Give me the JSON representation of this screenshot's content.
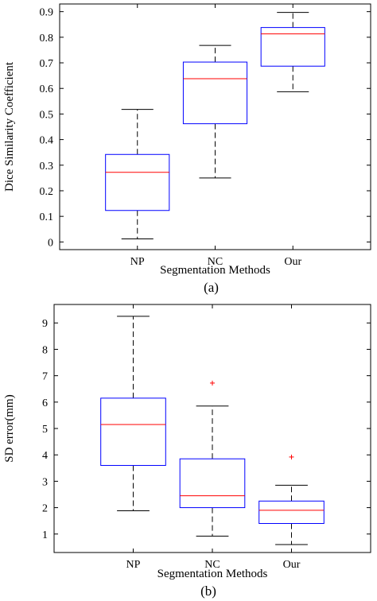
{
  "colors": {
    "box": "#0000ff",
    "median": "#ff0000",
    "whisker": "#000000",
    "outlier": "#ff0000",
    "axes": "#000000",
    "background": "#ffffff"
  },
  "chart_data": [
    {
      "type": "box",
      "panel": "(a)",
      "xlabel": "Segmentation Methods",
      "ylabel": "Dice Similarity Coefficient",
      "categories": [
        "NP",
        "NC",
        "Our"
      ],
      "ylim": [
        -0.03,
        0.93
      ],
      "yticks": [
        0,
        0.1,
        0.2,
        0.3,
        0.4,
        0.5,
        0.6,
        0.7,
        0.8,
        0.9
      ],
      "ytick_labels": [
        "0",
        "0.1",
        "0.2",
        "0.3",
        "0.4",
        "0.5",
        "0.6",
        "0.7",
        "0.8",
        "0.9"
      ],
      "grid": false,
      "boxes": [
        {
          "category": "NP",
          "min": 0.012,
          "q1": 0.123,
          "median": 0.272,
          "q3": 0.342,
          "max": 0.518,
          "outliers": []
        },
        {
          "category": "NC",
          "min": 0.25,
          "q1": 0.462,
          "median": 0.638,
          "q3": 0.703,
          "max": 0.768,
          "outliers": []
        },
        {
          "category": "Our",
          "min": 0.587,
          "q1": 0.687,
          "median": 0.813,
          "q3": 0.838,
          "max": 0.897,
          "outliers": []
        }
      ]
    },
    {
      "type": "box",
      "panel": "(b)",
      "xlabel": "Segmentation Methods",
      "ylabel": "SD error(mm)",
      "categories": [
        "NP",
        "NC",
        "Our"
      ],
      "ylim": [
        0.3,
        9.7
      ],
      "yticks": [
        1,
        2,
        3,
        4,
        5,
        6,
        7,
        8,
        9
      ],
      "ytick_labels": [
        "1",
        "2",
        "3",
        "4",
        "5",
        "6",
        "7",
        "8",
        "9"
      ],
      "grid": false,
      "boxes": [
        {
          "category": "NP",
          "min": 1.88,
          "q1": 3.6,
          "median": 5.15,
          "q3": 6.15,
          "max": 9.25,
          "outliers": []
        },
        {
          "category": "NC",
          "min": 0.92,
          "q1": 2.0,
          "median": 2.45,
          "q3": 3.85,
          "max": 5.85,
          "outliers": [
            6.72
          ]
        },
        {
          "category": "Our",
          "min": 0.6,
          "q1": 1.4,
          "median": 1.9,
          "q3": 2.25,
          "max": 2.85,
          "outliers": [
            3.92
          ]
        }
      ]
    }
  ]
}
